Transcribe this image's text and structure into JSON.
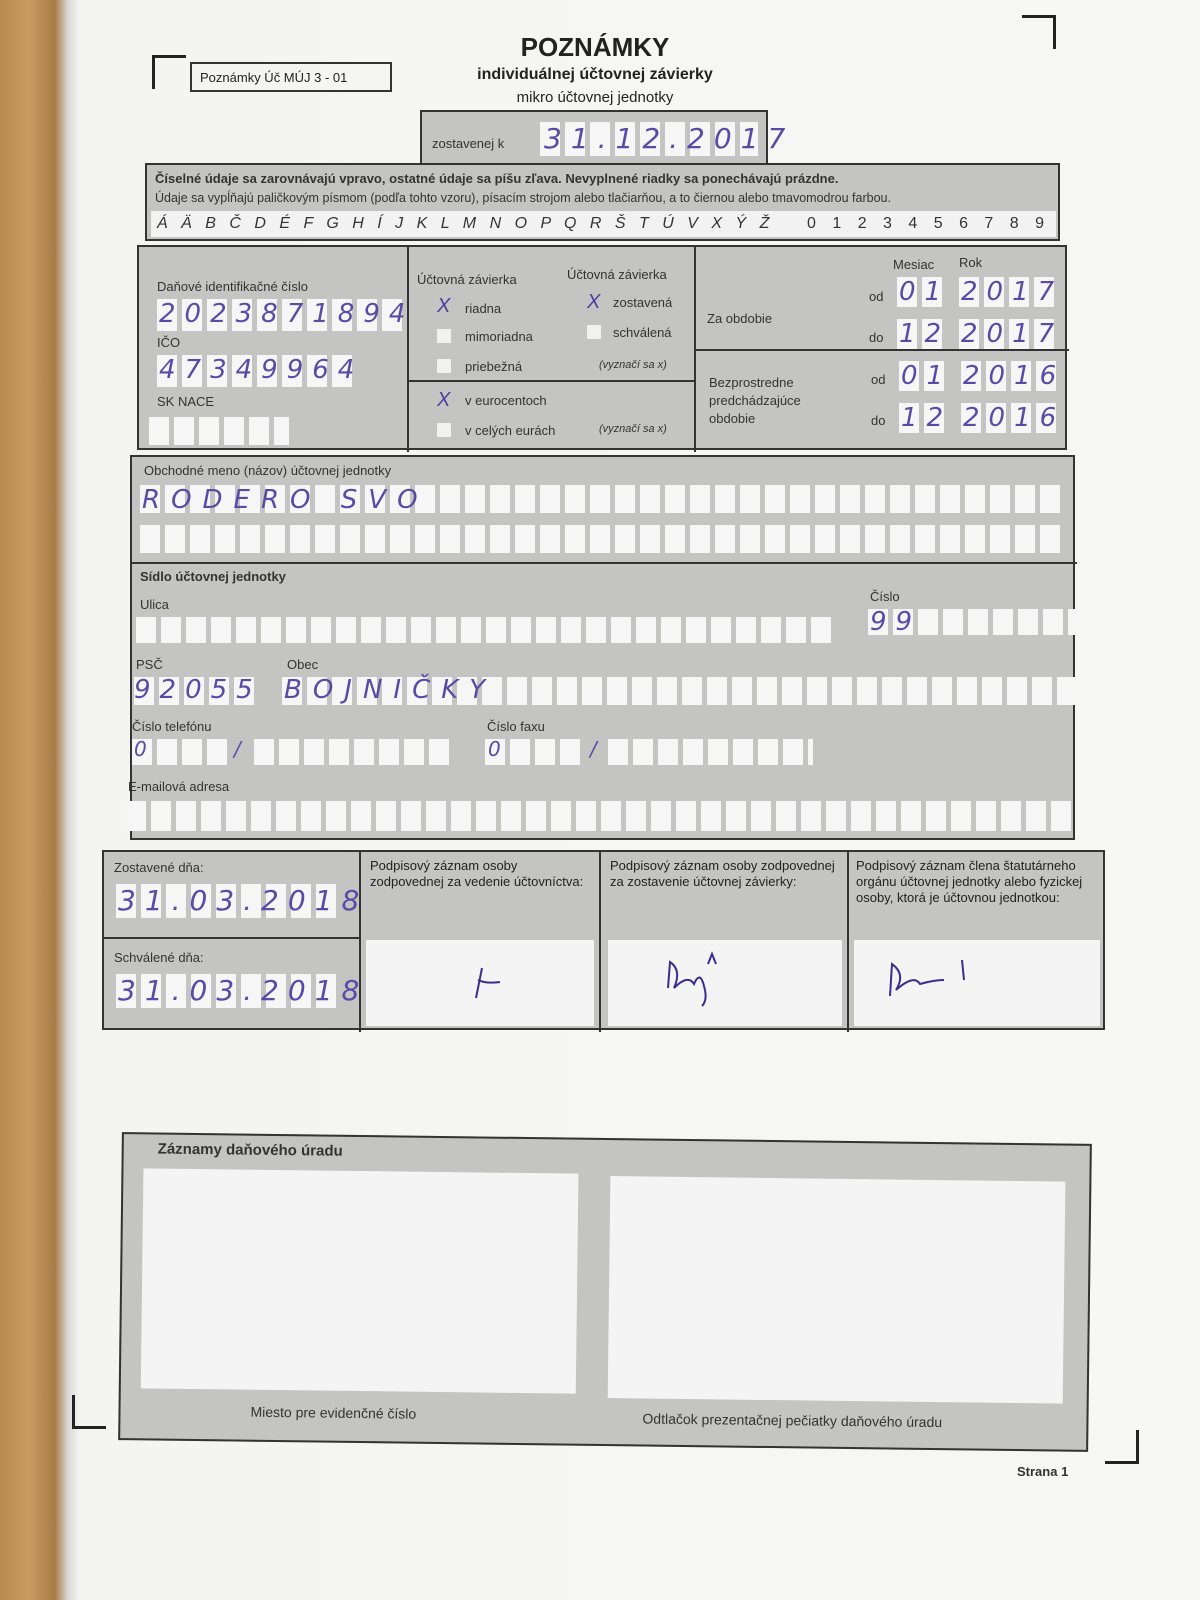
{
  "header": {
    "form_code": "Poznámky Úč MÚJ 3 - 01",
    "title": "POZNÁMKY",
    "subtitle": "individuálnej účtovnej závierky",
    "subtitle2": "mikro účtovnej jednotky",
    "prepared_label": "zostavenej k",
    "prepared_date": "31.12.2017"
  },
  "instructions": {
    "line1": "Číselné údaje sa zarovnávajú vpravo, ostatné údaje sa píšu zľava. Nevyplnené riadky sa ponechávajú prázdne.",
    "line2": "Údaje sa vypĺňajú paličkovým písmom (podľa tohto vzoru), písacím strojom alebo tlačiarňou, a to čiernou alebo tmavomodrou farbou.",
    "alphabet": "Á Ä B Č D É F G H Í J K L M N O P Q R Š T Ú V X Ý Ž",
    "digits": "0 1 2 3 4 5 6 7 8 9"
  },
  "ids": {
    "dic_label": "Daňové identifikačné číslo",
    "dic": "2023871894",
    "ico_label": "IČO",
    "ico": "47349964",
    "nace_label": "SK NACE"
  },
  "type": {
    "col1": "Účtovná závierka",
    "col2": "Účtovná závierka",
    "riadna": "riadna",
    "mimoriadna": "mimoriadna",
    "priebezna": "priebežná",
    "zostavena": "zostavená",
    "schvalena": "schválená",
    "mark_note": "(vyznačí sa x)",
    "eurocent": "v eurocentoch",
    "eur": "v celých eurách",
    "mark_note2": "(vyznačí sa x)",
    "checked": [
      "riadna",
      "zostavená",
      "v eurocentoch"
    ],
    "mark": "X"
  },
  "period": {
    "month_label": "Mesiac",
    "year_label": "Rok",
    "current_label": "Za obdobie",
    "prev_label1": "Bezprostredne",
    "prev_label2": "predchádzajúce",
    "prev_label3": "obdobie",
    "od": "od",
    "do": "do",
    "cur_from_m": "01",
    "cur_from_y": "2017",
    "cur_to_m": "12",
    "cur_to_y": "2017",
    "prev_from_m": "01",
    "prev_from_y": "2016",
    "prev_to_m": "12",
    "prev_to_y": "2016"
  },
  "entity": {
    "name_label": "Obchodné meno (názov) účtovnej jednotky",
    "name": "RODERO SVO",
    "seat_label": "Sídlo účtovnej jednotky",
    "street_label": "Ulica",
    "number_label": "Číslo",
    "number": "99",
    "psc_label": "PSČ",
    "psc": "92055",
    "city_label": "Obec",
    "city": "BOJNIČKY",
    "phone_label": "Číslo telefónu",
    "phone_prefix": "0",
    "fax_label": "Číslo faxu",
    "fax_prefix": "0",
    "slash": "/",
    "email_label": "E-mailová adresa"
  },
  "signatures": {
    "prepared_label": "Zostavené dňa:",
    "prepared": "31.03.2018",
    "approved_label": "Schválené dňa:",
    "approved": "31.03.2018",
    "sig1_label": "Podpisový záznam osoby zodpovednej za vedenie účtovníctva:",
    "sig2_label": "Podpisový záznam osoby zodpovednej za zostavenie účtovnej závierky:",
    "sig3_label": "Podpisový záznam člena štatutárneho orgánu účtovnej jednotky alebo fyzickej osoby, ktorá je účtovnou jednotkou:"
  },
  "office": {
    "title": "Záznamy daňového úradu",
    "left_caption": "Miesto pre evidenčné číslo",
    "right_caption": "Odtlačok prezentačnej pečiatky daňového úradu"
  },
  "footer": {
    "page": "Strana 1"
  },
  "colors": {
    "ink": "#5a4aa8",
    "form_gray": "#c4c4c2"
  }
}
